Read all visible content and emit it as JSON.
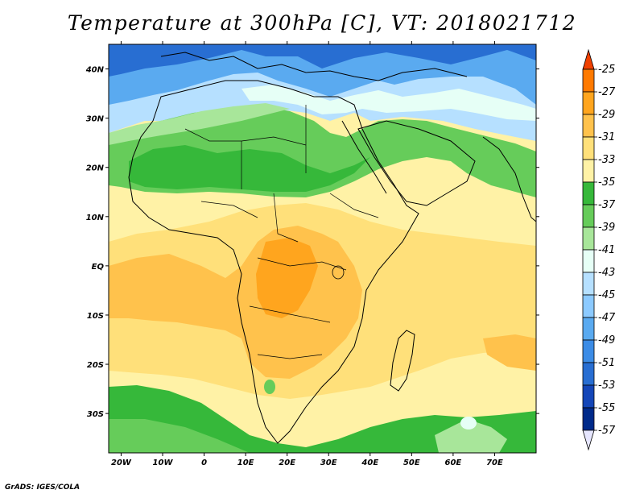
{
  "title": "Temperature at 300hPa [C], VT: 2018021712",
  "footer": "GrADS: IGES/COLA",
  "map": {
    "lon_range": [
      -23,
      80
    ],
    "lat_range": [
      -38,
      45
    ],
    "lon_ticks": [
      "20W",
      "10W",
      "0",
      "10E",
      "20E",
      "30E",
      "40E",
      "50E",
      "60E",
      "70E"
    ],
    "lat_ticks": [
      "40N",
      "30N",
      "20N",
      "10N",
      "EQ",
      "10S",
      "20S",
      "30S"
    ],
    "region": "Africa"
  },
  "colorbar": {
    "labels": [
      "-25",
      "-27",
      "-29",
      "-31",
      "-33",
      "-35",
      "-37",
      "-39",
      "-41",
      "-43",
      "-45",
      "-47",
      "-49",
      "-51",
      "-53",
      "-55",
      "-57"
    ],
    "colors": [
      "#f04000",
      "#ff7a00",
      "#ffa51e",
      "#ffc24c",
      "#ffe07a",
      "#fff2a6",
      "#36b83a",
      "#66cc5a",
      "#a8e69a",
      "#e6fff6",
      "#b6e0ff",
      "#8ccaff",
      "#5aaaf0",
      "#3c8ce6",
      "#286ed2",
      "#1446b8",
      "#002a8a",
      "#101066"
    ],
    "top_arrow_color": "#f04000",
    "bottom_arrow_color": "#e6e6ff"
  }
}
